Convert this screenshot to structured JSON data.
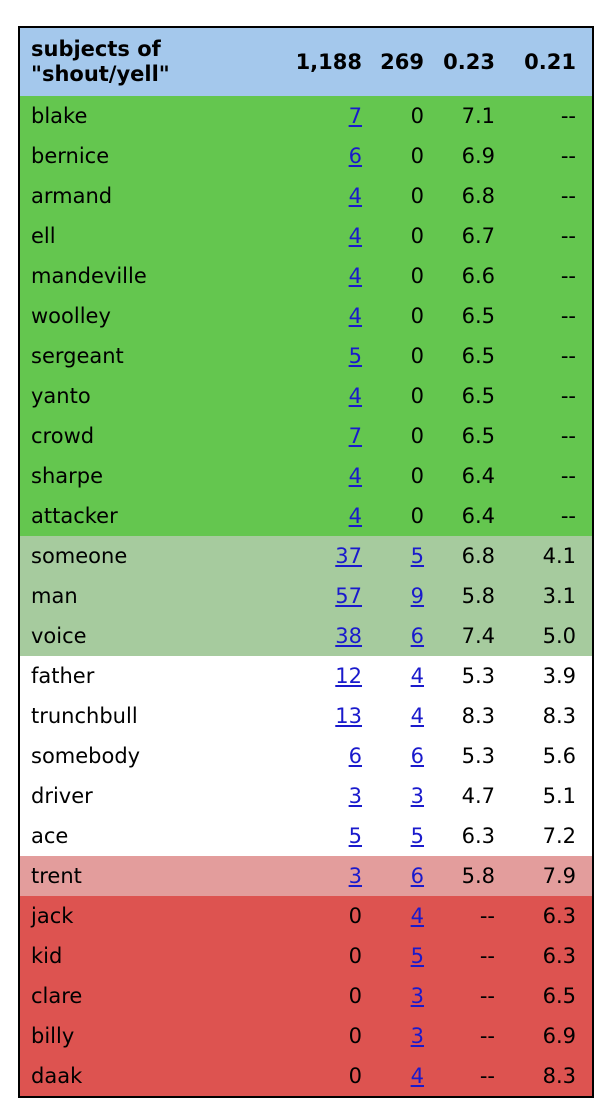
{
  "header": {
    "title_line1": "subjects of",
    "title_line2": "\"shout/yell\"",
    "col1": "1,188",
    "col2": "269",
    "col3": "0.23",
    "col4": "0.21"
  },
  "colors": {
    "header": "#a4c8ec",
    "green": "#64c64f",
    "lightgreen": "#a6cb9e",
    "white": "#ffffff",
    "pink": "#e39d9c",
    "red": "#dd5350",
    "link": "#1a1acc"
  },
  "rows": [
    {
      "name": "blake",
      "c1": "7",
      "c2": "0",
      "c3": "7.1",
      "c4": "--",
      "group": "green"
    },
    {
      "name": "bernice",
      "c1": "6",
      "c2": "0",
      "c3": "6.9",
      "c4": "--",
      "group": "green"
    },
    {
      "name": "armand",
      "c1": "4",
      "c2": "0",
      "c3": "6.8",
      "c4": "--",
      "group": "green"
    },
    {
      "name": "ell",
      "c1": "4",
      "c2": "0",
      "c3": "6.7",
      "c4": "--",
      "group": "green"
    },
    {
      "name": "mandeville",
      "c1": "4",
      "c2": "0",
      "c3": "6.6",
      "c4": "--",
      "group": "green"
    },
    {
      "name": "woolley",
      "c1": "4",
      "c2": "0",
      "c3": "6.5",
      "c4": "--",
      "group": "green"
    },
    {
      "name": "sergeant",
      "c1": "5",
      "c2": "0",
      "c3": "6.5",
      "c4": "--",
      "group": "green"
    },
    {
      "name": "yanto",
      "c1": "4",
      "c2": "0",
      "c3": "6.5",
      "c4": "--",
      "group": "green"
    },
    {
      "name": "crowd",
      "c1": "7",
      "c2": "0",
      "c3": "6.5",
      "c4": "--",
      "group": "green"
    },
    {
      "name": "sharpe",
      "c1": "4",
      "c2": "0",
      "c3": "6.4",
      "c4": "--",
      "group": "green"
    },
    {
      "name": "attacker",
      "c1": "4",
      "c2": "0",
      "c3": "6.4",
      "c4": "--",
      "group": "green"
    },
    {
      "name": "someone",
      "c1": "37",
      "c2": "5",
      "c3": "6.8",
      "c4": "4.1",
      "group": "lightgreen"
    },
    {
      "name": "man",
      "c1": "57",
      "c2": "9",
      "c3": "5.8",
      "c4": "3.1",
      "group": "lightgreen"
    },
    {
      "name": "voice",
      "c1": "38",
      "c2": "6",
      "c3": "7.4",
      "c4": "5.0",
      "group": "lightgreen"
    },
    {
      "name": "father",
      "c1": "12",
      "c2": "4",
      "c3": "5.3",
      "c4": "3.9",
      "group": "white"
    },
    {
      "name": "trunchbull",
      "c1": "13",
      "c2": "4",
      "c3": "8.3",
      "c4": "8.3",
      "group": "white"
    },
    {
      "name": "somebody",
      "c1": "6",
      "c2": "6",
      "c3": "5.3",
      "c4": "5.6",
      "group": "white"
    },
    {
      "name": "driver",
      "c1": "3",
      "c2": "3",
      "c3": "4.7",
      "c4": "5.1",
      "group": "white"
    },
    {
      "name": "ace",
      "c1": "5",
      "c2": "5",
      "c3": "6.3",
      "c4": "7.2",
      "group": "white"
    },
    {
      "name": "trent",
      "c1": "3",
      "c2": "6",
      "c3": "5.8",
      "c4": "7.9",
      "group": "pink"
    },
    {
      "name": "jack",
      "c1": "0",
      "c2": "4",
      "c3": "--",
      "c4": "6.3",
      "group": "red"
    },
    {
      "name": "kid",
      "c1": "0",
      "c2": "5",
      "c3": "--",
      "c4": "6.3",
      "group": "red"
    },
    {
      "name": "clare",
      "c1": "0",
      "c2": "3",
      "c3": "--",
      "c4": "6.5",
      "group": "red"
    },
    {
      "name": "billy",
      "c1": "0",
      "c2": "3",
      "c3": "--",
      "c4": "6.9",
      "group": "red"
    },
    {
      "name": "daak",
      "c1": "0",
      "c2": "4",
      "c3": "--",
      "c4": "8.3",
      "group": "red"
    }
  ]
}
